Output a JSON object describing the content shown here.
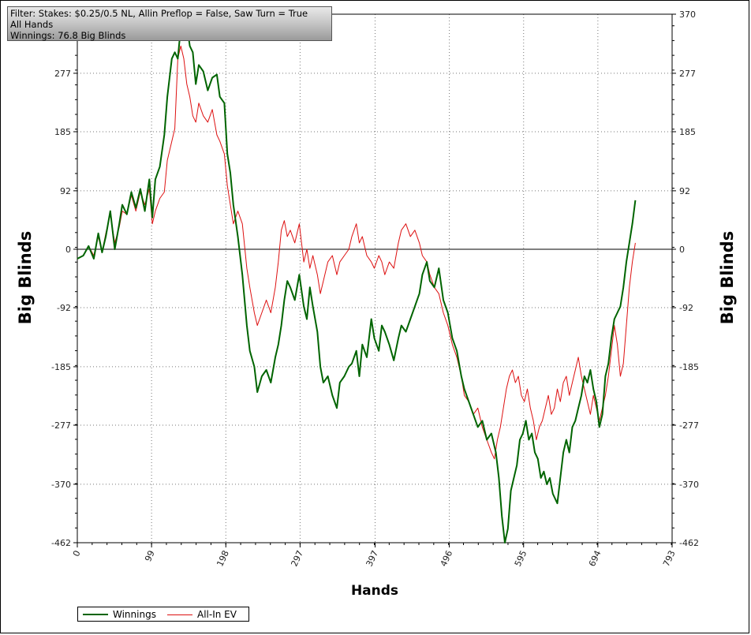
{
  "info": {
    "filter": "Filter: Stakes: $0.25/0.5 NL, Allin Preflop = False, Saw Turn = True",
    "scope": "All Hands",
    "winnings": "Winnings: 76.8 Big Blinds"
  },
  "colors": {
    "winnings": "#006400",
    "allin_ev": "#dd1111"
  },
  "chart_data": {
    "type": "line",
    "xlabel": "Hands",
    "ylabel": "Big Blinds",
    "xlim": [
      0,
      793
    ],
    "ylim": [
      -462,
      370
    ],
    "x_ticks": [
      0,
      99,
      198,
      297,
      397,
      496,
      595,
      694,
      793
    ],
    "y_ticks": [
      370,
      277,
      185,
      92,
      0,
      -92,
      -185,
      -277,
      -370,
      -462
    ],
    "legend": "bottom-left",
    "grid": true,
    "series": [
      {
        "name": "Winnings",
        "points": [
          [
            0,
            -15
          ],
          [
            8,
            -10
          ],
          [
            15,
            5
          ],
          [
            22,
            -15
          ],
          [
            28,
            25
          ],
          [
            33,
            -5
          ],
          [
            38,
            20
          ],
          [
            44,
            60
          ],
          [
            50,
            0
          ],
          [
            56,
            40
          ],
          [
            60,
            70
          ],
          [
            66,
            55
          ],
          [
            72,
            90
          ],
          [
            78,
            65
          ],
          [
            84,
            95
          ],
          [
            90,
            60
          ],
          [
            96,
            110
          ],
          [
            100,
            50
          ],
          [
            104,
            110
          ],
          [
            110,
            130
          ],
          [
            116,
            180
          ],
          [
            120,
            240
          ],
          [
            126,
            300
          ],
          [
            130,
            310
          ],
          [
            134,
            300
          ],
          [
            138,
            350
          ],
          [
            142,
            370
          ],
          [
            146,
            355
          ],
          [
            150,
            320
          ],
          [
            154,
            310
          ],
          [
            158,
            260
          ],
          [
            162,
            290
          ],
          [
            168,
            280
          ],
          [
            174,
            250
          ],
          [
            180,
            270
          ],
          [
            186,
            275
          ],
          [
            190,
            240
          ],
          [
            196,
            230
          ],
          [
            200,
            150
          ],
          [
            204,
            120
          ],
          [
            208,
            70
          ],
          [
            214,
            20
          ],
          [
            220,
            -40
          ],
          [
            226,
            -120
          ],
          [
            230,
            -160
          ],
          [
            236,
            -185
          ],
          [
            240,
            -225
          ],
          [
            246,
            -200
          ],
          [
            252,
            -190
          ],
          [
            258,
            -210
          ],
          [
            264,
            -170
          ],
          [
            268,
            -150
          ],
          [
            272,
            -120
          ],
          [
            276,
            -80
          ],
          [
            280,
            -50
          ],
          [
            284,
            -60
          ],
          [
            290,
            -80
          ],
          [
            296,
            -40
          ],
          [
            302,
            -90
          ],
          [
            306,
            -110
          ],
          [
            310,
            -60
          ],
          [
            314,
            -90
          ],
          [
            320,
            -130
          ],
          [
            324,
            -185
          ],
          [
            328,
            -210
          ],
          [
            334,
            -200
          ],
          [
            340,
            -230
          ],
          [
            346,
            -250
          ],
          [
            350,
            -210
          ],
          [
            356,
            -200
          ],
          [
            362,
            -185
          ],
          [
            366,
            -180
          ],
          [
            372,
            -160
          ],
          [
            376,
            -200
          ],
          [
            380,
            -150
          ],
          [
            386,
            -170
          ],
          [
            392,
            -110
          ],
          [
            396,
            -140
          ],
          [
            402,
            -160
          ],
          [
            406,
            -120
          ],
          [
            410,
            -130
          ],
          [
            416,
            -150
          ],
          [
            422,
            -175
          ],
          [
            428,
            -140
          ],
          [
            432,
            -120
          ],
          [
            438,
            -130
          ],
          [
            444,
            -110
          ],
          [
            450,
            -90
          ],
          [
            456,
            -70
          ],
          [
            460,
            -40
          ],
          [
            466,
            -20
          ],
          [
            470,
            -50
          ],
          [
            476,
            -60
          ],
          [
            482,
            -30
          ],
          [
            488,
            -80
          ],
          [
            494,
            -100
          ],
          [
            500,
            -140
          ],
          [
            506,
            -160
          ],
          [
            512,
            -200
          ],
          [
            516,
            -220
          ],
          [
            522,
            -240
          ],
          [
            528,
            -260
          ],
          [
            534,
            -280
          ],
          [
            540,
            -270
          ],
          [
            546,
            -300
          ],
          [
            552,
            -290
          ],
          [
            558,
            -320
          ],
          [
            562,
            -360
          ],
          [
            566,
            -420
          ],
          [
            570,
            -462
          ],
          [
            574,
            -440
          ],
          [
            578,
            -380
          ],
          [
            582,
            -360
          ],
          [
            586,
            -340
          ],
          [
            590,
            -300
          ],
          [
            594,
            -290
          ],
          [
            598,
            -270
          ],
          [
            602,
            -300
          ],
          [
            606,
            -290
          ],
          [
            610,
            -320
          ],
          [
            614,
            -330
          ],
          [
            618,
            -360
          ],
          [
            622,
            -350
          ],
          [
            626,
            -370
          ],
          [
            630,
            -360
          ],
          [
            634,
            -385
          ],
          [
            640,
            -400
          ],
          [
            644,
            -360
          ],
          [
            648,
            -320
          ],
          [
            652,
            -300
          ],
          [
            656,
            -320
          ],
          [
            660,
            -280
          ],
          [
            664,
            -270
          ],
          [
            668,
            -250
          ],
          [
            672,
            -230
          ],
          [
            676,
            -200
          ],
          [
            680,
            -210
          ],
          [
            684,
            -190
          ],
          [
            688,
            -220
          ],
          [
            692,
            -240
          ],
          [
            696,
            -280
          ],
          [
            700,
            -260
          ],
          [
            704,
            -200
          ],
          [
            708,
            -180
          ],
          [
            712,
            -140
          ],
          [
            716,
            -110
          ],
          [
            720,
            -100
          ],
          [
            724,
            -90
          ],
          [
            728,
            -60
          ],
          [
            732,
            -20
          ],
          [
            736,
            10
          ],
          [
            740,
            40
          ],
          [
            744,
            77
          ]
        ]
      },
      {
        "name": "All-In EV",
        "points": [
          [
            0,
            -15
          ],
          [
            8,
            -10
          ],
          [
            15,
            5
          ],
          [
            22,
            -10
          ],
          [
            28,
            20
          ],
          [
            33,
            -5
          ],
          [
            38,
            25
          ],
          [
            44,
            55
          ],
          [
            50,
            10
          ],
          [
            56,
            35
          ],
          [
            60,
            60
          ],
          [
            66,
            55
          ],
          [
            72,
            85
          ],
          [
            78,
            60
          ],
          [
            84,
            90
          ],
          [
            90,
            70
          ],
          [
            96,
            95
          ],
          [
            100,
            40
          ],
          [
            104,
            60
          ],
          [
            110,
            80
          ],
          [
            116,
            90
          ],
          [
            120,
            140
          ],
          [
            126,
            170
          ],
          [
            130,
            190
          ],
          [
            134,
            300
          ],
          [
            138,
            320
          ],
          [
            142,
            300
          ],
          [
            146,
            260
          ],
          [
            150,
            240
          ],
          [
            154,
            210
          ],
          [
            158,
            200
          ],
          [
            162,
            230
          ],
          [
            168,
            210
          ],
          [
            174,
            200
          ],
          [
            180,
            220
          ],
          [
            186,
            180
          ],
          [
            190,
            170
          ],
          [
            196,
            150
          ],
          [
            200,
            100
          ],
          [
            204,
            70
          ],
          [
            208,
            40
          ],
          [
            214,
            60
          ],
          [
            220,
            40
          ],
          [
            226,
            -30
          ],
          [
            230,
            -60
          ],
          [
            236,
            -100
          ],
          [
            240,
            -120
          ],
          [
            246,
            -100
          ],
          [
            252,
            -80
          ],
          [
            258,
            -100
          ],
          [
            264,
            -60
          ],
          [
            268,
            -20
          ],
          [
            272,
            30
          ],
          [
            276,
            45
          ],
          [
            280,
            20
          ],
          [
            284,
            30
          ],
          [
            290,
            10
          ],
          [
            296,
            40
          ],
          [
            302,
            -20
          ],
          [
            306,
            0
          ],
          [
            310,
            -30
          ],
          [
            314,
            -10
          ],
          [
            320,
            -40
          ],
          [
            324,
            -70
          ],
          [
            328,
            -50
          ],
          [
            334,
            -20
          ],
          [
            340,
            -10
          ],
          [
            346,
            -40
          ],
          [
            350,
            -20
          ],
          [
            356,
            -10
          ],
          [
            362,
            0
          ],
          [
            366,
            20
          ],
          [
            372,
            40
          ],
          [
            376,
            10
          ],
          [
            380,
            20
          ],
          [
            386,
            -10
          ],
          [
            392,
            -20
          ],
          [
            396,
            -30
          ],
          [
            402,
            -10
          ],
          [
            406,
            -20
          ],
          [
            410,
            -40
          ],
          [
            416,
            -20
          ],
          [
            422,
            -30
          ],
          [
            428,
            10
          ],
          [
            432,
            30
          ],
          [
            438,
            40
          ],
          [
            444,
            20
          ],
          [
            450,
            30
          ],
          [
            456,
            10
          ],
          [
            460,
            -10
          ],
          [
            466,
            -20
          ],
          [
            470,
            -40
          ],
          [
            476,
            -60
          ],
          [
            482,
            -70
          ],
          [
            488,
            -100
          ],
          [
            494,
            -120
          ],
          [
            500,
            -150
          ],
          [
            506,
            -170
          ],
          [
            512,
            -200
          ],
          [
            516,
            -230
          ],
          [
            522,
            -240
          ],
          [
            528,
            -260
          ],
          [
            534,
            -250
          ],
          [
            540,
            -280
          ],
          [
            546,
            -300
          ],
          [
            552,
            -320
          ],
          [
            556,
            -330
          ],
          [
            560,
            -300
          ],
          [
            564,
            -280
          ],
          [
            568,
            -250
          ],
          [
            572,
            -220
          ],
          [
            576,
            -200
          ],
          [
            580,
            -190
          ],
          [
            584,
            -210
          ],
          [
            588,
            -200
          ],
          [
            592,
            -230
          ],
          [
            596,
            -240
          ],
          [
            600,
            -220
          ],
          [
            604,
            -250
          ],
          [
            608,
            -270
          ],
          [
            612,
            -300
          ],
          [
            616,
            -280
          ],
          [
            620,
            -270
          ],
          [
            624,
            -250
          ],
          [
            628,
            -230
          ],
          [
            632,
            -260
          ],
          [
            636,
            -250
          ],
          [
            640,
            -220
          ],
          [
            644,
            -240
          ],
          [
            648,
            -210
          ],
          [
            652,
            -200
          ],
          [
            656,
            -230
          ],
          [
            660,
            -210
          ],
          [
            664,
            -190
          ],
          [
            668,
            -170
          ],
          [
            672,
            -200
          ],
          [
            676,
            -220
          ],
          [
            680,
            -240
          ],
          [
            684,
            -260
          ],
          [
            688,
            -230
          ],
          [
            692,
            -250
          ],
          [
            696,
            -270
          ],
          [
            700,
            -250
          ],
          [
            704,
            -230
          ],
          [
            708,
            -200
          ],
          [
            712,
            -160
          ],
          [
            716,
            -120
          ],
          [
            720,
            -150
          ],
          [
            724,
            -200
          ],
          [
            728,
            -180
          ],
          [
            732,
            -120
          ],
          [
            736,
            -60
          ],
          [
            740,
            -20
          ],
          [
            744,
            10
          ]
        ]
      }
    ]
  }
}
